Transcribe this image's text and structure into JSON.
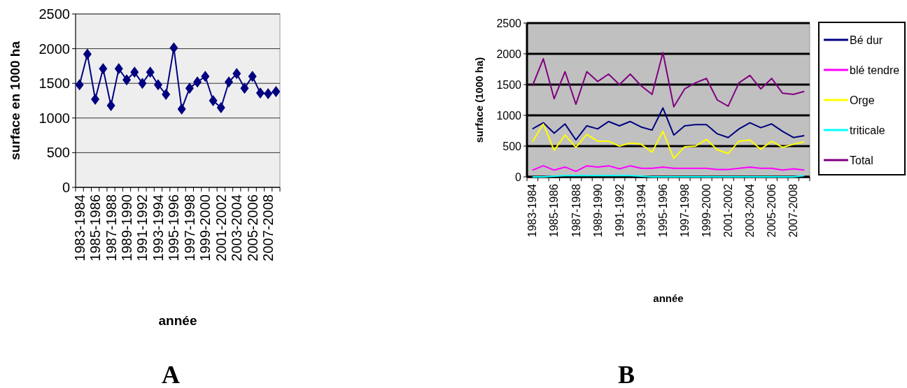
{
  "chart_data": [
    {
      "type": "line",
      "title": "A",
      "xlabel": "année",
      "ylabel": "surface en 1000 ha",
      "categories": [
        "1983-1984",
        null,
        "1985-1986",
        null,
        "1987-1988",
        null,
        "1989-1990",
        null,
        "1991-1992",
        null,
        "1993-1994",
        null,
        "1995-1996",
        null,
        "1997-1998",
        null,
        "1999-2000",
        null,
        "2001-2002",
        null,
        "2003-2004",
        null,
        "2005-2006",
        null,
        "2007-2008",
        null
      ],
      "series": [
        {
          "color": "#000080",
          "values": [
            1480,
            1920,
            1270,
            1710,
            1180,
            1710,
            1550,
            1660,
            1500,
            1660,
            1480,
            1340,
            2010,
            1130,
            1430,
            1520,
            1600,
            1250,
            1150,
            1520,
            1640,
            1430,
            1600,
            1360,
            1350,
            1380
          ]
        }
      ],
      "ylim": [
        0,
        2500
      ],
      "yticks": [
        0,
        500,
        1000,
        1500,
        2000,
        2500
      ],
      "grid": "y",
      "marker": "diamond",
      "legend": false
    },
    {
      "type": "line",
      "title": "B",
      "xlabel": "année",
      "ylabel": "surface (1000 ha)",
      "categories": [
        "1983-1984",
        null,
        "1985-1986",
        null,
        "1987-1988",
        null,
        "1989-1990",
        null,
        "1991-1992",
        null,
        "1993-1994",
        null,
        "1995-1996",
        null,
        "1997-1998",
        null,
        "1999-2000",
        null,
        "2001-2002",
        null,
        "2003-2004",
        null,
        "2005-2006",
        null,
        "2007-2008",
        null
      ],
      "series": [
        {
          "name": "Bé dur",
          "color": "#000080",
          "values": [
            780,
            880,
            710,
            860,
            600,
            830,
            780,
            900,
            830,
            900,
            810,
            760,
            1120,
            680,
            830,
            850,
            850,
            700,
            640,
            780,
            880,
            800,
            860,
            740,
            640,
            670
          ]
        },
        {
          "name": "blé tendre",
          "color": "#ff00ff",
          "values": [
            110,
            180,
            110,
            160,
            90,
            180,
            160,
            180,
            130,
            180,
            140,
            140,
            160,
            140,
            140,
            140,
            140,
            120,
            120,
            140,
            160,
            140,
            140,
            110,
            130,
            110
          ]
        },
        {
          "name": "Orge",
          "color": "#ffff00",
          "values": [
            570,
            860,
            430,
            680,
            480,
            690,
            580,
            580,
            500,
            550,
            530,
            400,
            740,
            300,
            490,
            500,
            610,
            440,
            380,
            580,
            600,
            450,
            580,
            480,
            530,
            570
          ]
        },
        {
          "name": "triticale",
          "color": "#00ffff",
          "values": [
            0,
            0,
            10,
            20,
            20,
            20,
            20,
            20,
            20,
            20,
            10,
            0,
            0,
            0,
            0,
            0,
            0,
            0,
            0,
            0,
            0,
            0,
            0,
            0,
            0,
            20
          ]
        },
        {
          "name": "Total",
          "color": "#800080",
          "values": [
            1480,
            1920,
            1270,
            1710,
            1180,
            1710,
            1550,
            1670,
            1500,
            1670,
            1480,
            1340,
            2020,
            1140,
            1430,
            1530,
            1600,
            1250,
            1150,
            1530,
            1650,
            1430,
            1600,
            1360,
            1340,
            1390
          ]
        }
      ],
      "ylim": [
        0,
        2500
      ],
      "yticks": [
        0,
        500,
        1000,
        1500,
        2000,
        2500
      ],
      "grid": "y",
      "marker": "none",
      "legend": "right"
    }
  ]
}
